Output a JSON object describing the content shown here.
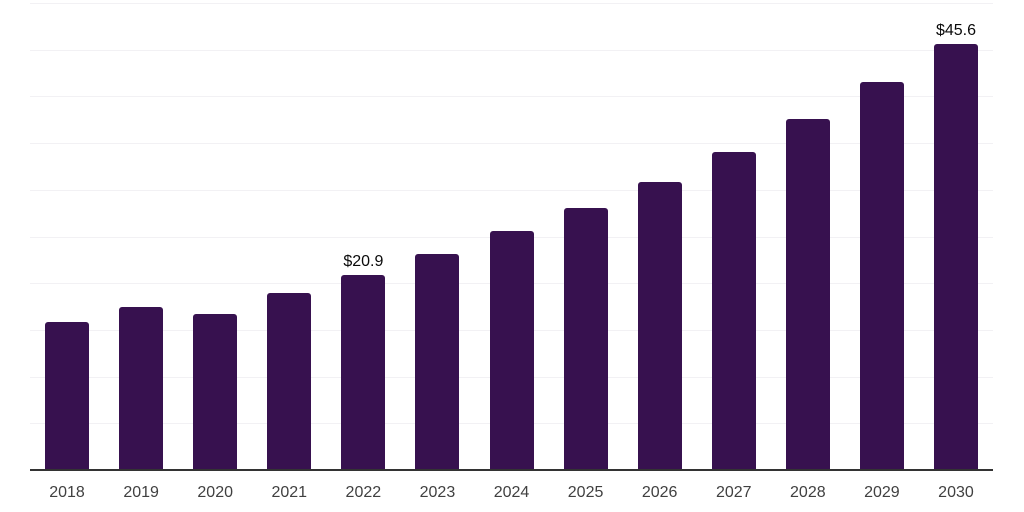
{
  "chart_data": {
    "type": "bar",
    "title": "",
    "xlabel": "",
    "ylabel": "",
    "categories": [
      "2018",
      "2019",
      "2020",
      "2021",
      "2022",
      "2023",
      "2024",
      "2025",
      "2026",
      "2027",
      "2028",
      "2029",
      "2030"
    ],
    "values": [
      15.8,
      17.4,
      16.7,
      18.9,
      20.9,
      23.1,
      25.6,
      28.1,
      30.8,
      34.0,
      37.6,
      41.5,
      45.6
    ],
    "value_labels": {
      "2022": "$20.9",
      "2030": "$45.6"
    },
    "ylim": [
      0,
      50
    ],
    "gridline_step": 5,
    "grid": true,
    "legend_position": "none",
    "colors": {
      "bar": "#37114F",
      "grid": "#f2f1f4",
      "axis": "#333333",
      "tick_label": "#404040",
      "value_label": "#0a0a0a",
      "background": "#ffffff"
    }
  }
}
